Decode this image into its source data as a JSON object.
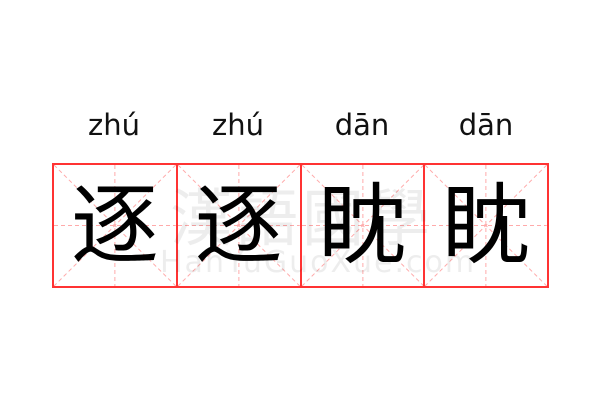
{
  "items": [
    {
      "pinyin": "zhú",
      "char": "逐"
    },
    {
      "pinyin": "zhú",
      "char": "逐"
    },
    {
      "pinyin": "dān",
      "char": "眈"
    },
    {
      "pinyin": "dān",
      "char": "眈"
    }
  ],
  "watermark": {
    "chinese": "漢語國學",
    "latin": "HanYuGuoXue.com"
  },
  "colors": {
    "grid": "#ff3333",
    "guides": "#ffaaaa"
  }
}
